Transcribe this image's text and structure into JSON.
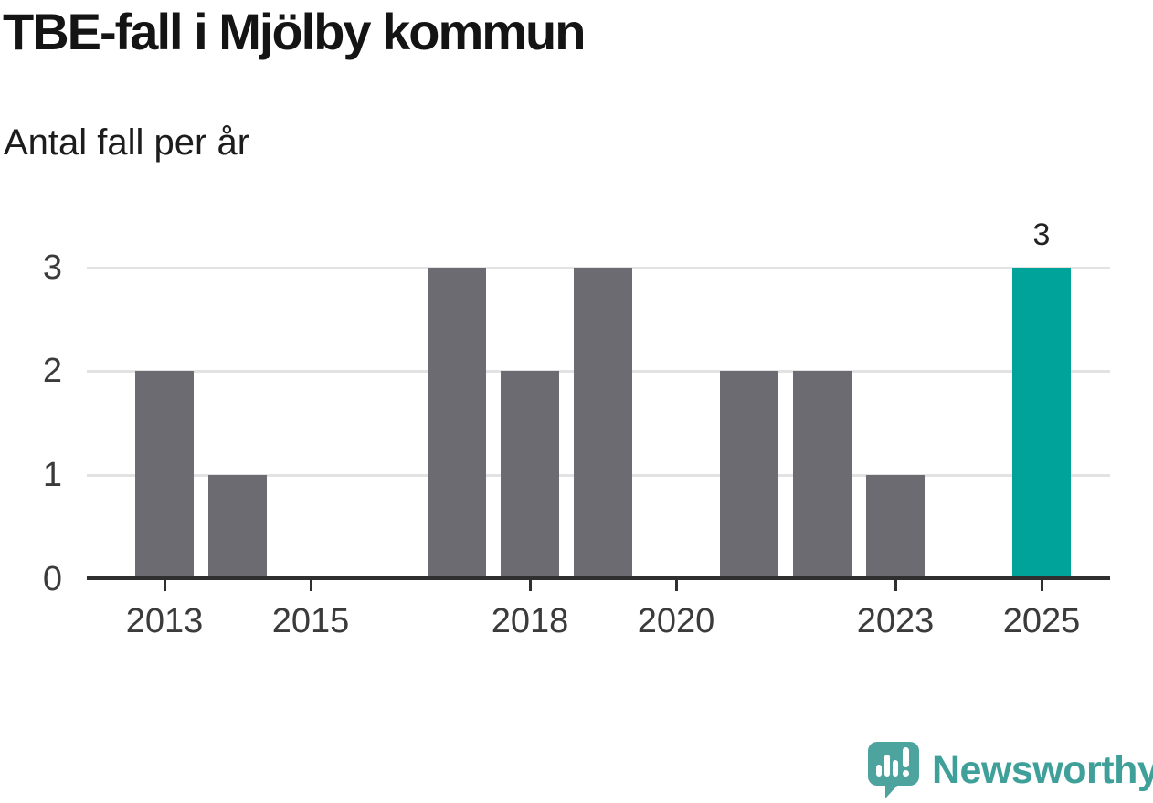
{
  "chart": {
    "title": "TBE-fall i Mjölby kommun",
    "subtitle": "Antal fall per år"
  },
  "chart_data": {
    "type": "bar",
    "title": "TBE-fall i Mjölby kommun",
    "subtitle": "Antal fall per år",
    "categories": [
      2013,
      2014,
      2015,
      2016,
      2017,
      2018,
      2019,
      2020,
      2021,
      2022,
      2023,
      2024,
      2025
    ],
    "values": [
      2,
      1,
      0,
      0,
      3,
      2,
      3,
      0,
      2,
      2,
      1,
      0,
      3
    ],
    "highlight_category": 2025,
    "value_labels": [
      {
        "category": 2025,
        "label": "3"
      }
    ],
    "bar_color": "#6c6b71",
    "highlight_color": "#00a399",
    "xticks": [
      2013,
      2015,
      2018,
      2020,
      2023,
      2025
    ],
    "yticks": [
      0,
      1,
      2,
      3
    ],
    "ylim": [
      0,
      3
    ],
    "xlabel": "",
    "ylabel": "",
    "grid": "horizontal-only",
    "gridline_color": "#e2e2e2",
    "axis_color": "#2f2f2f",
    "legend": "none"
  },
  "footer": {
    "brand": "Newsworthy",
    "logo_icon": "newsworthy-speech-bubble-bar-chart-icon",
    "logo_color": "#4da49f"
  }
}
